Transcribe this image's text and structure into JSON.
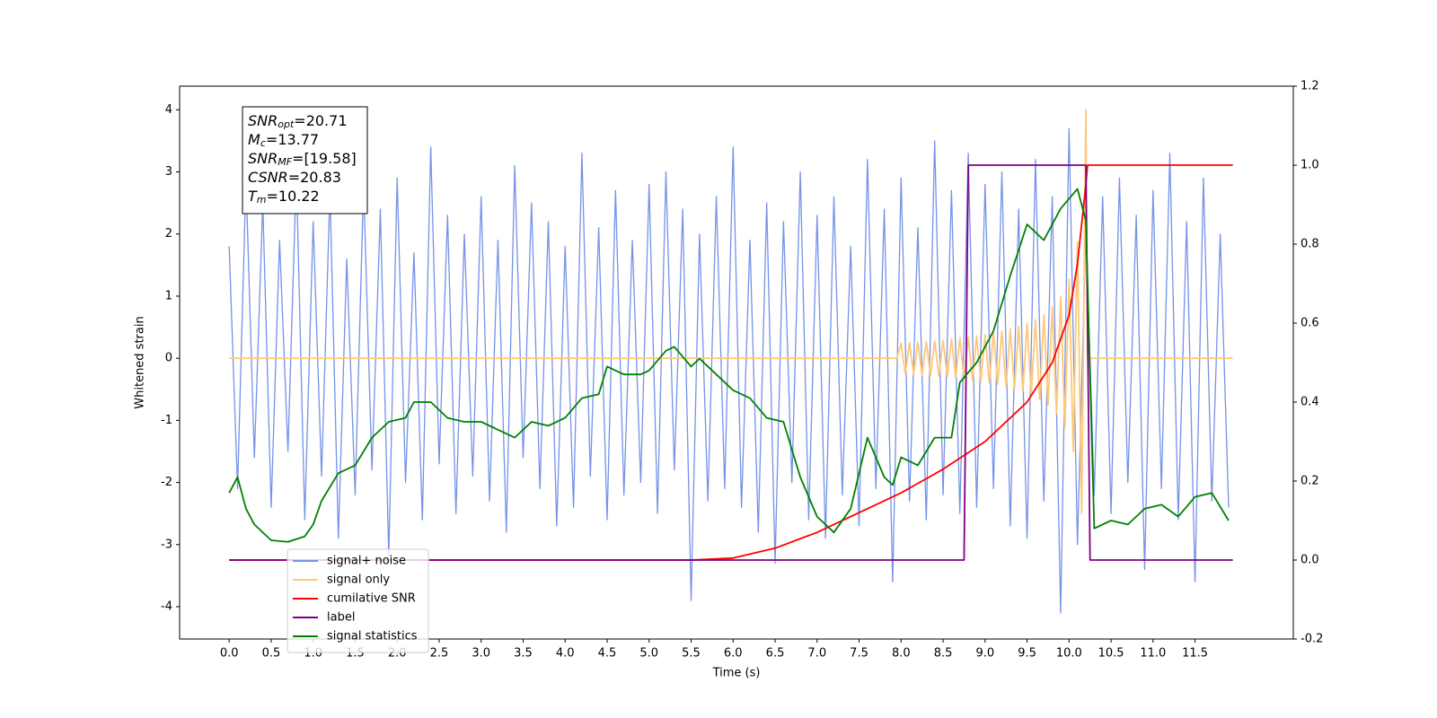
{
  "chart_data": {
    "type": "line",
    "xlabel": "Time (s)",
    "ylabel": "Whitened strain",
    "xlim": [
      -0.59,
      12.67
    ],
    "ylim": [
      -4.52,
      4.38
    ],
    "y2lim": [
      -0.2,
      1.2
    ],
    "xticks": [
      {
        "value": 0,
        "label": "0.0"
      },
      0.5,
      {
        "value": 1,
        "label": "1.0"
      },
      1.5,
      {
        "value": 2,
        "label": "2.0"
      },
      2.5,
      {
        "value": 3,
        "label": "3.0"
      },
      3.5,
      {
        "value": 4,
        "label": "4.0"
      },
      4.5,
      {
        "value": 5,
        "label": "5.0"
      },
      5.5,
      {
        "value": 6,
        "label": "6.0"
      },
      6.5,
      {
        "value": 7,
        "label": "7.0"
      },
      7.5,
      {
        "value": 8,
        "label": "8.0"
      },
      8.5,
      {
        "value": 9,
        "label": "9.0"
      },
      9.5,
      {
        "value": 10,
        "label": "10.0"
      },
      10.5,
      {
        "value": 11,
        "label": "11.0"
      },
      11.5
    ],
    "yticks": [
      -4,
      -3,
      -2,
      -1,
      0,
      1,
      2,
      3,
      4
    ],
    "y2ticks": [
      -0.2,
      {
        "value": 0,
        "label": "0.0"
      },
      0.2,
      0.4,
      0.6,
      0.8,
      {
        "value": 1,
        "label": "1.0"
      },
      1.2
    ],
    "grid": false,
    "legend_loc": "lower left",
    "annotation_box": [
      {
        "name": "SNR",
        "sub": "opt",
        "text": "=20.71"
      },
      {
        "name": "M",
        "sub": "c",
        "text": "=13.77"
      },
      {
        "name": "SNR",
        "sub": "MF",
        "text": "=[19.58]"
      },
      {
        "name": "CSNR",
        "text": "=20.83"
      },
      {
        "name": "T",
        "sub": "m",
        "text": "=10.22"
      }
    ],
    "series": [
      {
        "name": "signal+ noise",
        "color": "#7592e8",
        "x": [
          0.0,
          0.1,
          0.2,
          0.3,
          0.4,
          0.5,
          0.6,
          0.7,
          0.8,
          0.9,
          1.0,
          1.1,
          1.2,
          1.3,
          1.4,
          1.5,
          1.6,
          1.7,
          1.8,
          1.9,
          2.0,
          2.1,
          2.2,
          2.3,
          2.4,
          2.5,
          2.6,
          2.7,
          2.8,
          2.9,
          3.0,
          3.1,
          3.2,
          3.3,
          3.4,
          3.5,
          3.6,
          3.7,
          3.8,
          3.9,
          4.0,
          4.1,
          4.2,
          4.3,
          4.4,
          4.5,
          4.6,
          4.7,
          4.8,
          4.9,
          5.0,
          5.1,
          5.2,
          5.3,
          5.4,
          5.5,
          5.6,
          5.7,
          5.8,
          5.9,
          6.0,
          6.1,
          6.2,
          6.3,
          6.4,
          6.5,
          6.6,
          6.7,
          6.8,
          6.9,
          7.0,
          7.1,
          7.2,
          7.3,
          7.4,
          7.5,
          7.6,
          7.7,
          7.8,
          7.9,
          8.0,
          8.1,
          8.2,
          8.3,
          8.4,
          8.5,
          8.6,
          8.7,
          8.8,
          8.9,
          9.0,
          9.1,
          9.2,
          9.3,
          9.4,
          9.5,
          9.6,
          9.7,
          9.8,
          9.9,
          10.0,
          10.1,
          10.2,
          10.3,
          10.4,
          10.5,
          10.6,
          10.7,
          10.8,
          10.9,
          11.0,
          11.1,
          11.2,
          11.3,
          11.4,
          11.5,
          11.6,
          11.7,
          11.8,
          11.9
        ],
        "values": [
          1.8,
          -2.1,
          2.9,
          -1.6,
          2.5,
          -2.4,
          1.9,
          -1.5,
          3.0,
          -2.6,
          2.2,
          -1.9,
          2.7,
          -2.9,
          1.6,
          -2.2,
          2.8,
          -1.8,
          2.4,
          -3.2,
          2.9,
          -2.0,
          1.7,
          -2.6,
          3.4,
          -1.7,
          2.3,
          -2.5,
          2.0,
          -1.9,
          2.6,
          -2.3,
          1.9,
          -2.8,
          3.1,
          -1.6,
          2.5,
          -2.1,
          2.2,
          -2.7,
          1.8,
          -2.4,
          3.3,
          -1.9,
          2.1,
          -2.6,
          2.7,
          -2.2,
          1.9,
          -2.0,
          2.8,
          -2.5,
          3.0,
          -1.8,
          2.4,
          -3.9,
          2.0,
          -2.3,
          2.6,
          -2.1,
          3.4,
          -2.4,
          1.9,
          -2.8,
          2.5,
          -3.3,
          2.2,
          -2.0,
          3.0,
          -2.6,
          2.3,
          -2.9,
          2.6,
          -2.2,
          1.8,
          -2.7,
          3.2,
          -2.1,
          2.4,
          -3.6,
          2.9,
          -2.3,
          2.1,
          -2.6,
          3.5,
          -2.2,
          2.7,
          -2.5,
          3.3,
          -2.4,
          2.8,
          -2.1,
          3.0,
          -2.7,
          2.4,
          -2.9,
          3.2,
          -2.3,
          2.6,
          -4.1,
          3.7,
          -3.0,
          2.1,
          -2.2,
          2.6,
          -2.5,
          2.9,
          -2.0,
          2.3,
          -3.4,
          2.7,
          -2.1,
          3.3,
          -2.6,
          2.2,
          -3.6,
          2.9,
          -2.3,
          2.0,
          -2.4
        ]
      },
      {
        "name": "signal only",
        "color": "#ffc878",
        "x": [
          0,
          7.95,
          8.0,
          8.05,
          8.1,
          8.15,
          8.2,
          8.25,
          8.3,
          8.35,
          8.4,
          8.45,
          8.5,
          8.55,
          8.6,
          8.65,
          8.7,
          8.75,
          8.8,
          8.85,
          8.9,
          8.95,
          9.0,
          9.05,
          9.1,
          9.15,
          9.2,
          9.25,
          9.3,
          9.35,
          9.4,
          9.45,
          9.5,
          9.55,
          9.6,
          9.65,
          9.7,
          9.75,
          9.8,
          9.85,
          9.9,
          9.95,
          10.0,
          10.05,
          10.1,
          10.15,
          10.2,
          10.22,
          10.25,
          11.95
        ],
        "values": [
          0,
          0,
          0.24,
          -0.25,
          0.25,
          -0.26,
          0.26,
          -0.27,
          0.27,
          -0.28,
          0.28,
          -0.29,
          0.29,
          -0.3,
          0.31,
          -0.32,
          0.33,
          -0.33,
          0.34,
          -0.35,
          0.36,
          -0.37,
          0.38,
          -0.39,
          0.41,
          -0.42,
          0.44,
          -0.45,
          0.47,
          -0.49,
          0.51,
          -0.53,
          0.56,
          -0.59,
          0.62,
          -0.66,
          0.7,
          -0.75,
          0.82,
          -0.89,
          0.99,
          -1.11,
          1.27,
          -1.5,
          1.87,
          -2.5,
          4.0,
          0,
          0,
          0
        ]
      },
      {
        "name": "cumilative SNR",
        "color": "#ff0000",
        "axis": "y2",
        "x": [
          0,
          5.5,
          6.0,
          6.5,
          7.0,
          7.5,
          8.0,
          8.5,
          9.0,
          9.5,
          9.8,
          10.0,
          10.1,
          10.2,
          10.22,
          11.95
        ],
        "values": [
          0,
          0,
          0.005,
          0.03,
          0.07,
          0.12,
          0.17,
          0.23,
          0.3,
          0.4,
          0.5,
          0.62,
          0.75,
          0.95,
          1,
          1
        ]
      },
      {
        "name": "label",
        "color": "#800080",
        "axis": "y2",
        "x": [
          0,
          8.75,
          8.8,
          10.2,
          10.25,
          11.95
        ],
        "values": [
          0,
          0,
          1,
          1,
          0,
          0
        ]
      },
      {
        "name": "signal statistics",
        "color": "#008000",
        "axis": "y2",
        "x": [
          0,
          0.1,
          0.2,
          0.3,
          0.5,
          0.7,
          0.9,
          1.0,
          1.1,
          1.3,
          1.5,
          1.7,
          1.9,
          2.1,
          2.2,
          2.4,
          2.6,
          2.8,
          3.0,
          3.2,
          3.4,
          3.6,
          3.8,
          4.0,
          4.2,
          4.4,
          4.5,
          4.7,
          4.9,
          5.0,
          5.2,
          5.3,
          5.5,
          5.6,
          5.8,
          6.0,
          6.2,
          6.4,
          6.6,
          6.8,
          7.0,
          7.2,
          7.4,
          7.6,
          7.8,
          7.9,
          8.0,
          8.2,
          8.4,
          8.6,
          8.7,
          8.9,
          9.1,
          9.3,
          9.5,
          9.7,
          9.9,
          10.1,
          10.2,
          10.3,
          10.5,
          10.7,
          10.9,
          11.1,
          11.3,
          11.5,
          11.7,
          11.9
        ],
        "values": [
          0.17,
          0.21,
          0.13,
          0.09,
          0.05,
          0.046,
          0.06,
          0.09,
          0.15,
          0.22,
          0.24,
          0.31,
          0.35,
          0.36,
          0.4,
          0.4,
          0.36,
          0.35,
          0.35,
          0.33,
          0.31,
          0.35,
          0.34,
          0.36,
          0.41,
          0.42,
          0.49,
          0.47,
          0.47,
          0.48,
          0.53,
          0.54,
          0.49,
          0.51,
          0.47,
          0.43,
          0.41,
          0.36,
          0.35,
          0.21,
          0.11,
          0.07,
          0.13,
          0.31,
          0.21,
          0.19,
          0.26,
          0.24,
          0.31,
          0.31,
          0.45,
          0.5,
          0.58,
          0.72,
          0.85,
          0.81,
          0.89,
          0.94,
          0.86,
          0.08,
          0.1,
          0.09,
          0.13,
          0.14,
          0.11,
          0.16,
          0.17,
          0.1
        ]
      }
    ]
  }
}
